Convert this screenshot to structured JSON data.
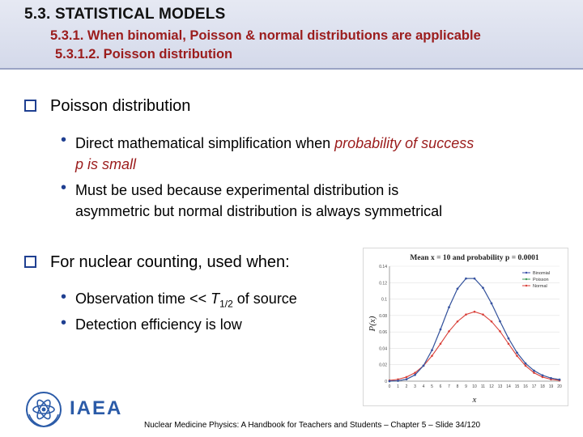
{
  "header": {
    "title": "5.3. STATISTICAL MODELS",
    "subtitle1": "5.3.1. When binomial, Poisson & normal distributions are applicable",
    "subtitle2": "5.3.1.2. Poisson distribution"
  },
  "section1": {
    "heading": "Poisson distribution",
    "bullet1": {
      "prefix": "Direct mathematical simplification when ",
      "highlight_line1": "probability of success",
      "highlight_line2": "p is small"
    },
    "bullet2": {
      "line1": "Must be used because experimental distribution is",
      "line2": "asymmetric but normal distribution is always symmetrical"
    }
  },
  "section2": {
    "heading": "For nuclear counting, used when:",
    "bullet1": {
      "prefix": "Observation time << ",
      "symbol": "T",
      "sub": "1/2",
      "suffix": " of source"
    },
    "bullet2": "Detection efficiency is low"
  },
  "chart_data": {
    "type": "line",
    "title": "Mean x = 10 and probability p = 0.0001",
    "xlabel": "x",
    "ylabel": "P(x)",
    "xlim": [
      0,
      20
    ],
    "ylim": [
      0,
      0.14
    ],
    "xticks": [
      0,
      1,
      2,
      3,
      4,
      5,
      6,
      7,
      8,
      9,
      10,
      11,
      12,
      13,
      14,
      15,
      16,
      17,
      18,
      19,
      20
    ],
    "yticks": [
      0,
      0.02,
      0.04,
      0.06,
      0.08,
      0.1,
      0.12,
      0.14
    ],
    "ytick_labels": [
      "0",
      "0.02",
      "0.04",
      "0.06",
      "0.08",
      "0.1",
      "0.12",
      "0.14"
    ],
    "legend_position": "top-right",
    "x": [
      0,
      1,
      2,
      3,
      4,
      5,
      6,
      7,
      8,
      9,
      10,
      11,
      12,
      13,
      14,
      15,
      16,
      17,
      18,
      19,
      20
    ],
    "series": [
      {
        "name": "Binomial",
        "color": "#3a4fa8",
        "values": [
          5e-05,
          0.0005,
          0.0023,
          0.0076,
          0.0189,
          0.0378,
          0.0631,
          0.0901,
          0.1126,
          0.1251,
          0.1251,
          0.1137,
          0.0948,
          0.0729,
          0.0521,
          0.0347,
          0.0217,
          0.0128,
          0.0071,
          0.0037,
          0.0019
        ]
      },
      {
        "name": "Poisson",
        "color": "#3f9a5b",
        "values": [
          5e-05,
          0.0005,
          0.0023,
          0.0076,
          0.0189,
          0.0378,
          0.0631,
          0.0901,
          0.1126,
          0.1251,
          0.1251,
          0.1137,
          0.0948,
          0.0729,
          0.0521,
          0.0347,
          0.0217,
          0.0128,
          0.0071,
          0.0037,
          0.0019
        ]
      },
      {
        "name": "Normal",
        "color": "#d9413a",
        "values": [
          0.0009,
          0.0022,
          0.005,
          0.0102,
          0.0188,
          0.0309,
          0.0456,
          0.0607,
          0.0727,
          0.0812,
          0.0846,
          0.0812,
          0.0727,
          0.0607,
          0.0456,
          0.0309,
          0.0188,
          0.0102,
          0.005,
          0.0022,
          0.0009
        ]
      }
    ]
  },
  "logo": {
    "text": "IAEA"
  },
  "footer": "Nuclear Medicine Physics: A Handbook for Teachers and Students – Chapter 5 – Slide 34/120"
}
